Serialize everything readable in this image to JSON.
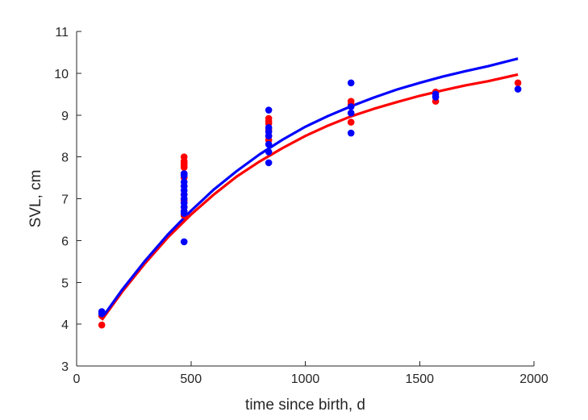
{
  "chart_data": {
    "type": "scatter",
    "title": "",
    "xlabel": "time since birth, d",
    "ylabel": "SVL, cm",
    "xlim": [
      0,
      2000
    ],
    "ylim": [
      3,
      11
    ],
    "xticks": [
      0,
      500,
      1000,
      1500,
      2000
    ],
    "yticks": [
      3,
      4,
      5,
      6,
      7,
      8,
      9,
      10,
      11
    ],
    "grid": false,
    "legend": "none",
    "series": [
      {
        "kind": "points",
        "color": "#ff0000",
        "points": [
          [
            110,
            3.98
          ],
          [
            110,
            4.2
          ],
          [
            470,
            8.0
          ],
          [
            470,
            7.9
          ],
          [
            470,
            7.85
          ],
          [
            470,
            7.8
          ],
          [
            470,
            7.75
          ],
          [
            470,
            7.6
          ],
          [
            470,
            7.5
          ],
          [
            470,
            7.3
          ],
          [
            470,
            7.1
          ],
          [
            470,
            6.95
          ],
          [
            470,
            6.8
          ],
          [
            470,
            6.7
          ],
          [
            470,
            6.6
          ],
          [
            840,
            8.92
          ],
          [
            840,
            8.85
          ],
          [
            840,
            8.8
          ],
          [
            840,
            8.65
          ],
          [
            840,
            8.5
          ],
          [
            840,
            8.4
          ],
          [
            1200,
            9.33
          ],
          [
            1200,
            9.25
          ],
          [
            1200,
            8.83
          ],
          [
            1570,
            9.55
          ],
          [
            1570,
            9.33
          ],
          [
            1930,
            9.77
          ]
        ]
      },
      {
        "kind": "points",
        "color": "#0000ff",
        "points": [
          [
            110,
            4.3
          ],
          [
            110,
            4.25
          ],
          [
            470,
            7.6
          ],
          [
            470,
            7.55
          ],
          [
            470,
            7.4
          ],
          [
            470,
            7.3
          ],
          [
            470,
            7.2
          ],
          [
            470,
            7.1
          ],
          [
            470,
            7.0
          ],
          [
            470,
            6.9
          ],
          [
            470,
            6.8
          ],
          [
            470,
            6.7
          ],
          [
            470,
            6.65
          ],
          [
            470,
            5.97
          ],
          [
            840,
            9.12
          ],
          [
            840,
            8.7
          ],
          [
            840,
            8.6
          ],
          [
            840,
            8.5
          ],
          [
            840,
            8.3
          ],
          [
            840,
            8.12
          ],
          [
            840,
            7.86
          ],
          [
            1200,
            9.77
          ],
          [
            1200,
            9.2
          ],
          [
            1200,
            9.05
          ],
          [
            1200,
            8.57
          ],
          [
            1570,
            9.5
          ],
          [
            1570,
            9.43
          ],
          [
            1930,
            9.62
          ]
        ]
      },
      {
        "kind": "line",
        "color": "#ff0000",
        "x": [
          110,
          200,
          300,
          400,
          500,
          600,
          700,
          800,
          900,
          1000,
          1100,
          1200,
          1300,
          1400,
          1500,
          1600,
          1700,
          1800,
          1930
        ],
        "y": [
          4.1,
          4.78,
          5.46,
          6.08,
          6.62,
          7.1,
          7.53,
          7.89,
          8.21,
          8.5,
          8.75,
          8.97,
          9.15,
          9.31,
          9.46,
          9.59,
          9.71,
          9.81,
          9.97
        ]
      },
      {
        "kind": "line",
        "color": "#0000ff",
        "x": [
          110,
          200,
          300,
          400,
          500,
          600,
          700,
          800,
          900,
          1000,
          1100,
          1200,
          1300,
          1400,
          1500,
          1600,
          1700,
          1800,
          1930
        ],
        "y": [
          4.14,
          4.83,
          5.52,
          6.15,
          6.71,
          7.22,
          7.66,
          8.06,
          8.41,
          8.72,
          8.98,
          9.21,
          9.42,
          9.61,
          9.77,
          9.92,
          10.05,
          10.17,
          10.35
        ]
      }
    ]
  }
}
